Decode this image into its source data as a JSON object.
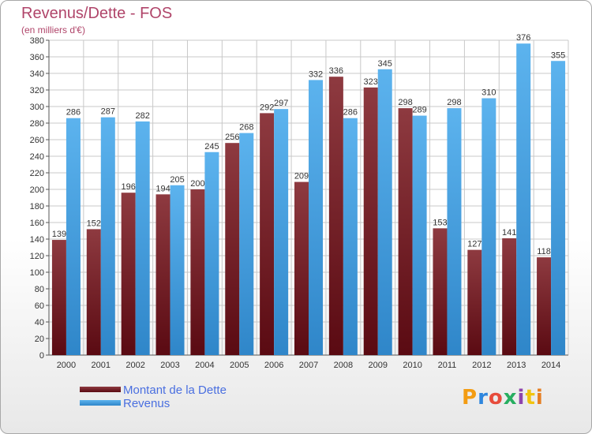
{
  "title": "Revenus/Dette - FOS",
  "subtitle": "(en milliers d'€)",
  "logo_text": "Proxiti",
  "colors": {
    "dette": "#7a1f26",
    "revenus": "#4aa3e2",
    "title": "#b0456a",
    "legend_text": "#4a6fe0"
  },
  "chart_data": {
    "type": "bar",
    "categories": [
      "2000",
      "2001",
      "2002",
      "2003",
      "2004",
      "2005",
      "2006",
      "2007",
      "2008",
      "2009",
      "2010",
      "2011",
      "2012",
      "2013",
      "2014"
    ],
    "series": [
      {
        "name": "Montant de la Dette",
        "values": [
          139,
          152,
          196,
          194,
          200,
          256,
          292,
          209,
          336,
          323,
          298,
          153,
          127,
          141,
          118
        ]
      },
      {
        "name": "Revenus",
        "values": [
          286,
          287,
          282,
          205,
          245,
          268,
          297,
          332,
          286,
          345,
          289,
          298,
          310,
          376,
          355
        ]
      }
    ],
    "ylim": [
      0,
      380
    ],
    "ytick_step": 20,
    "grid": true,
    "legend_position": "bottom-left"
  }
}
